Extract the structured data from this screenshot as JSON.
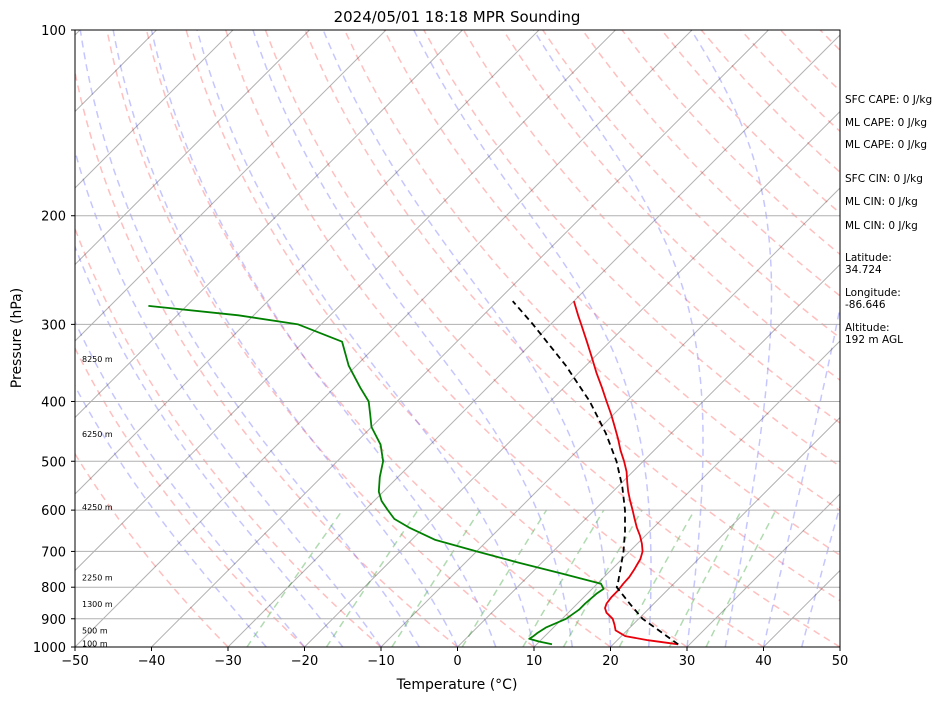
{
  "chart_data": {
    "type": "line",
    "title": "2024/05/01 18:18 MPR Sounding",
    "xlabel": "Temperature (°C)",
    "ylabel": "Pressure (hPa)",
    "xlim": [
      -50,
      50
    ],
    "ylim": [
      1000,
      100
    ],
    "y_scale": "log",
    "skew_degrees": 45,
    "grid": true,
    "x_ticks": [
      -50,
      -40,
      -30,
      -20,
      -10,
      0,
      10,
      20,
      30,
      40,
      50
    ],
    "x_tick_labels": [
      "−50",
      "−40",
      "−30",
      "−20",
      "−10",
      "0",
      "10",
      "20",
      "30",
      "40",
      "50"
    ],
    "y_ticks": [
      100,
      200,
      300,
      400,
      500,
      600,
      700,
      800,
      900,
      1000
    ],
    "y_tick_labels": [
      "100",
      "200",
      "300",
      "400",
      "500",
      "600",
      "700",
      "800",
      "900",
      "1000"
    ],
    "series": [
      {
        "role": "temperature",
        "color": "#e8000b",
        "p": [
          990,
          975,
          960,
          940,
          920,
          900,
          880,
          865,
          850,
          830,
          810,
          790,
          770,
          750,
          720,
          700,
          680,
          660,
          640,
          620,
          600,
          580,
          560,
          540,
          520,
          500,
          480,
          460,
          440,
          420,
          400,
          380,
          360,
          340,
          320,
          300,
          290,
          275
        ],
        "t": [
          28.5,
          24,
          20.5,
          18.5,
          17.6,
          16.6,
          15,
          14.2,
          13.8,
          13.6,
          13.6,
          13.4,
          13.3,
          13,
          12.4,
          11.7,
          10.6,
          9.3,
          7.8,
          6.4,
          5,
          3.5,
          2,
          0.6,
          -0.8,
          -2.5,
          -4.4,
          -6.2,
          -8.2,
          -10.3,
          -12.6,
          -15,
          -17.6,
          -20.2,
          -23,
          -26,
          -27.6,
          -30
        ]
      },
      {
        "role": "dewpoint",
        "color": "#008000",
        "p": [
          990,
          980,
          970,
          960,
          950,
          930,
          900,
          870,
          850,
          820,
          805,
          790,
          760,
          730,
          700,
          670,
          640,
          620,
          600,
          580,
          560,
          530,
          500,
          470,
          440,
          420,
          400,
          380,
          350,
          320,
          300,
          290,
          280
        ],
        "t": [
          12,
          10,
          8.3,
          8.5,
          8.6,
          9,
          10.5,
          11,
          11,
          11.2,
          11.5,
          10.5,
          4,
          -3,
          -10,
          -17,
          -22,
          -25,
          -27,
          -29,
          -30.6,
          -32.4,
          -34,
          -36.5,
          -40,
          -41.8,
          -43.7,
          -46.6,
          -51,
          -55,
          -63,
          -72,
          -85
        ]
      },
      {
        "role": "parcel",
        "color": "#000000",
        "dash": "6 4",
        "p": [
          990,
          900,
          850,
          800,
          790,
          750,
          700,
          650,
          600,
          550,
          500,
          450,
          400,
          350,
          300,
          275
        ],
        "t": [
          28.5,
          20.5,
          16.8,
          13,
          12.7,
          11.2,
          9.2,
          6.8,
          4,
          0.6,
          -3.5,
          -8.6,
          -14.8,
          -22.6,
          -32.3,
          -38
        ]
      }
    ],
    "height_labels": [
      {
        "p": 998,
        "text": "100 m"
      },
      {
        "p": 950,
        "text": "500 m"
      },
      {
        "p": 862,
        "text": "1300 m"
      },
      {
        "p": 780,
        "text": "2250 m"
      },
      {
        "p": 600,
        "text": "4250 m"
      },
      {
        "p": 457,
        "text": "6250 m"
      },
      {
        "p": 345,
        "text": "8250 m"
      }
    ],
    "annotations": [
      "SFC CAPE: 0 J/kg",
      "ML CAPE: 0 J/kg",
      "ML CAPE: 0 J/kg",
      "SFC CIN: 0 J/kg",
      "ML CIN: 0 J/kg",
      "ML CIN: 0 J/kg",
      "Latitude:",
      "34.724",
      "Longitude:",
      "-86.646",
      "Altitude:",
      "192 m AGL"
    ],
    "background_lines": {
      "isotherm_color": "#000000",
      "dry_adiabat_color": "#ff7070",
      "moist_adiabat_color": "#7070ff",
      "mixing_ratio_color": "#50b050"
    }
  }
}
